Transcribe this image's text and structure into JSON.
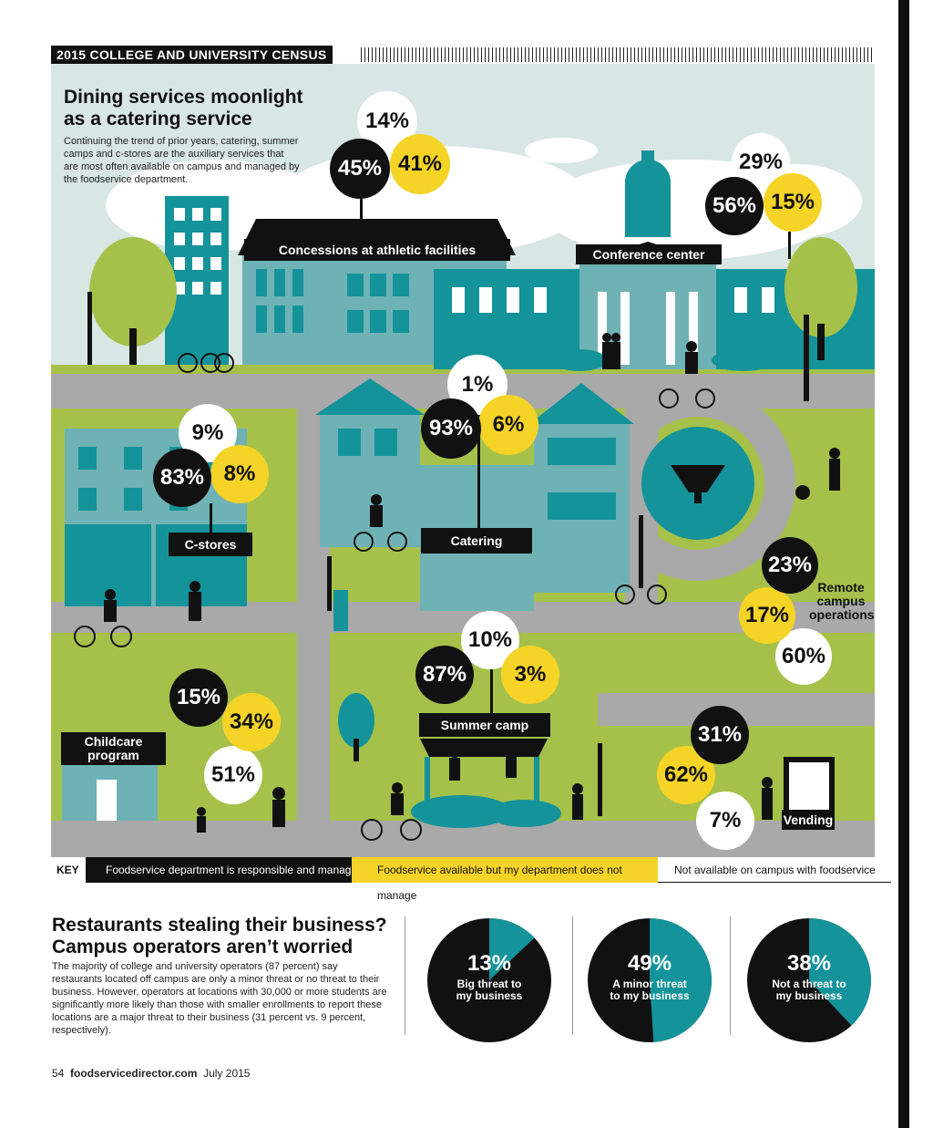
{
  "banner": "2015 COLLEGE AND UNIVERSITY CENSUS",
  "section1": {
    "title_line1": "Dining services moonlight",
    "title_line2": "as a catering service",
    "lead": "Continuing the trend of prior years, catering, summer camps and c-stores are the auxiliary services that are most often available on campus and managed by the foodservice department."
  },
  "colors": {
    "black": "#111111",
    "yellow": "#f5d327",
    "white": "#ffffff",
    "teal": "#14939a",
    "sky": "#d8e6e4",
    "grass": "#a5c14a",
    "road": "#a9a9a9"
  },
  "key": {
    "label": "KEY",
    "black": "Foodservice department is responsible and manages",
    "yellow": "Foodservice available but my department does not manage",
    "white": "Not available on campus with foodservice"
  },
  "chart_data": [
    {
      "type": "table",
      "columns": [
        "Foodservice department is responsible and manages",
        "Foodservice available but my department does not manage",
        "Not available on campus with foodservice"
      ],
      "rows": [
        {
          "category": "Concessions at athletic facilities",
          "values": [
            45,
            41,
            14
          ]
        },
        {
          "category": "Conference center",
          "values": [
            56,
            15,
            29
          ]
        },
        {
          "category": "C-stores",
          "values": [
            83,
            8,
            9
          ]
        },
        {
          "category": "Catering",
          "values": [
            93,
            6,
            1
          ]
        },
        {
          "category": "Remote campus operations",
          "values": [
            23,
            17,
            60
          ]
        },
        {
          "category": "Summer camp",
          "values": [
            87,
            3,
            10
          ]
        },
        {
          "category": "Childcare program",
          "values": [
            15,
            34,
            51
          ]
        },
        {
          "category": "Vending",
          "values": [
            31,
            62,
            7
          ]
        }
      ]
    },
    {
      "type": "pie",
      "title": "",
      "slices": [
        {
          "pct": 13,
          "label_line1": "Big threat to",
          "label_line2": "my business"
        },
        {
          "pct": 49,
          "label_line1": "A minor threat",
          "label_line2": "to my business"
        },
        {
          "pct": 38,
          "label_line1": "Not a threat to",
          "label_line2": "my business"
        }
      ]
    }
  ],
  "labels": {
    "concessions": "Concessions at athletic facilities",
    "conference": "Conference center",
    "cstores": "C-stores",
    "catering": "Catering",
    "remote_1": "Remote",
    "remote_2": "campus",
    "remote_3": "operations",
    "summer": "Summer camp",
    "childcare_1": "Childcare",
    "childcare_2": "program",
    "vending": "Vending"
  },
  "section2": {
    "title_line1": "Restaurants stealing their business?",
    "title_line2": "Campus operators aren’t worried",
    "lead": "The majority of college and university operators (87 percent) say restaurants located off campus are only a minor threat or no threat to their business. However, operators at locations with 30,000 or more students are significantly more likely than those with smaller enrollments to report these locations are a major threat to their business (31 percent vs. 9 percent, respectively)."
  },
  "footer": {
    "page": "54",
    "site": "foodservicedirector.com",
    "date": "July 2015"
  }
}
